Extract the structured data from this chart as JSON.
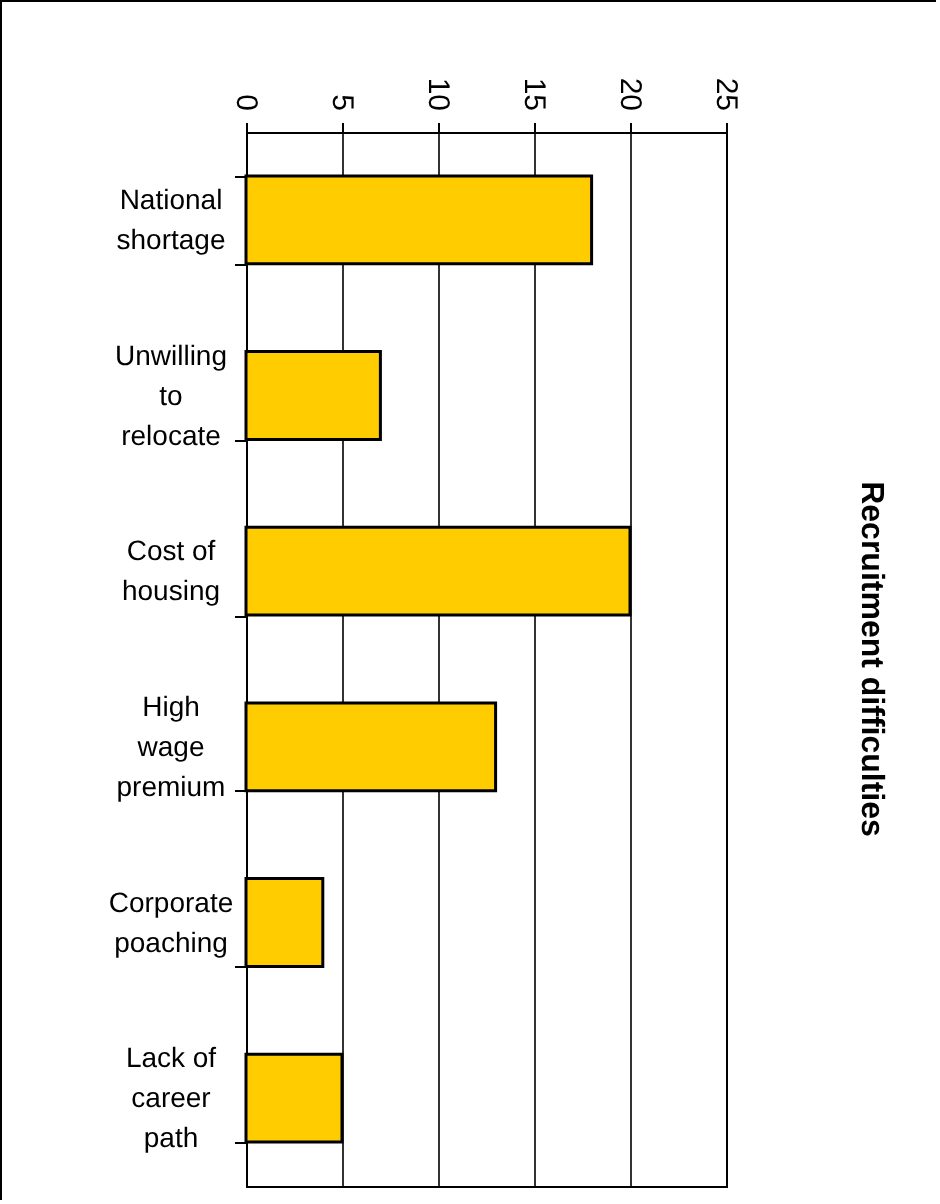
{
  "chart_data": {
    "type": "bar",
    "orientation": "horizontal",
    "title": "Recruitment difficulties",
    "categories": [
      "National shortage",
      "Unwilling to relocate",
      "Cost of housing",
      "High wage premium",
      "Corporate poaching",
      "Lack of career path"
    ],
    "values": [
      18,
      7,
      20,
      13,
      4,
      5
    ],
    "color": "#ffcc00",
    "xlim": [
      0,
      25
    ],
    "xticks": [
      0,
      5,
      10,
      15,
      20,
      25
    ],
    "grid": "x"
  }
}
